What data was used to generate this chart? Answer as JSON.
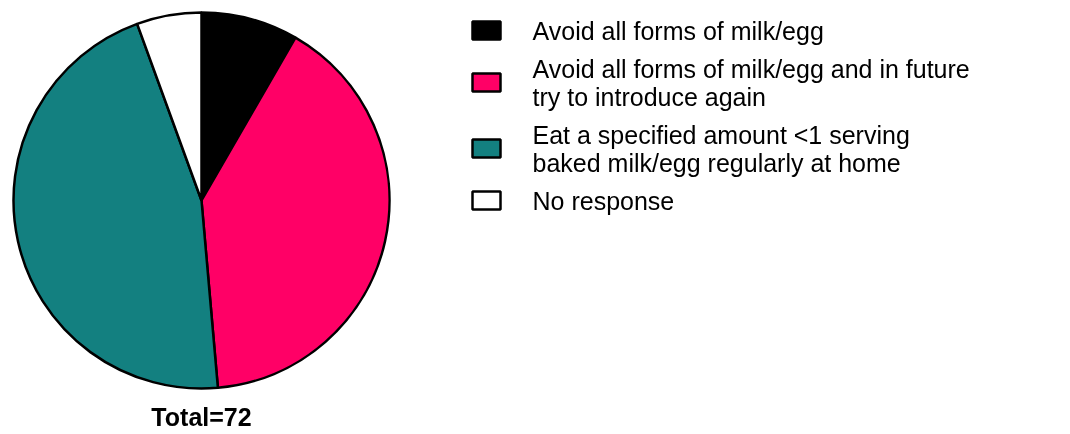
{
  "chart_data": {
    "type": "pie",
    "title": "Total=72",
    "categories": [
      "Avoid all forms of milk/egg",
      "Avoid all forms of milk/egg and in future\ntry to introduce again",
      "Eat a specified amount <1 serving\nbaked milk/egg regularly at home",
      "No response"
    ],
    "values": [
      8.33,
      40.28,
      45.83,
      5.56
    ],
    "colors": [
      "#000000",
      "#ff0066",
      "#138080",
      "#ffffff"
    ],
    "legend": "right"
  }
}
